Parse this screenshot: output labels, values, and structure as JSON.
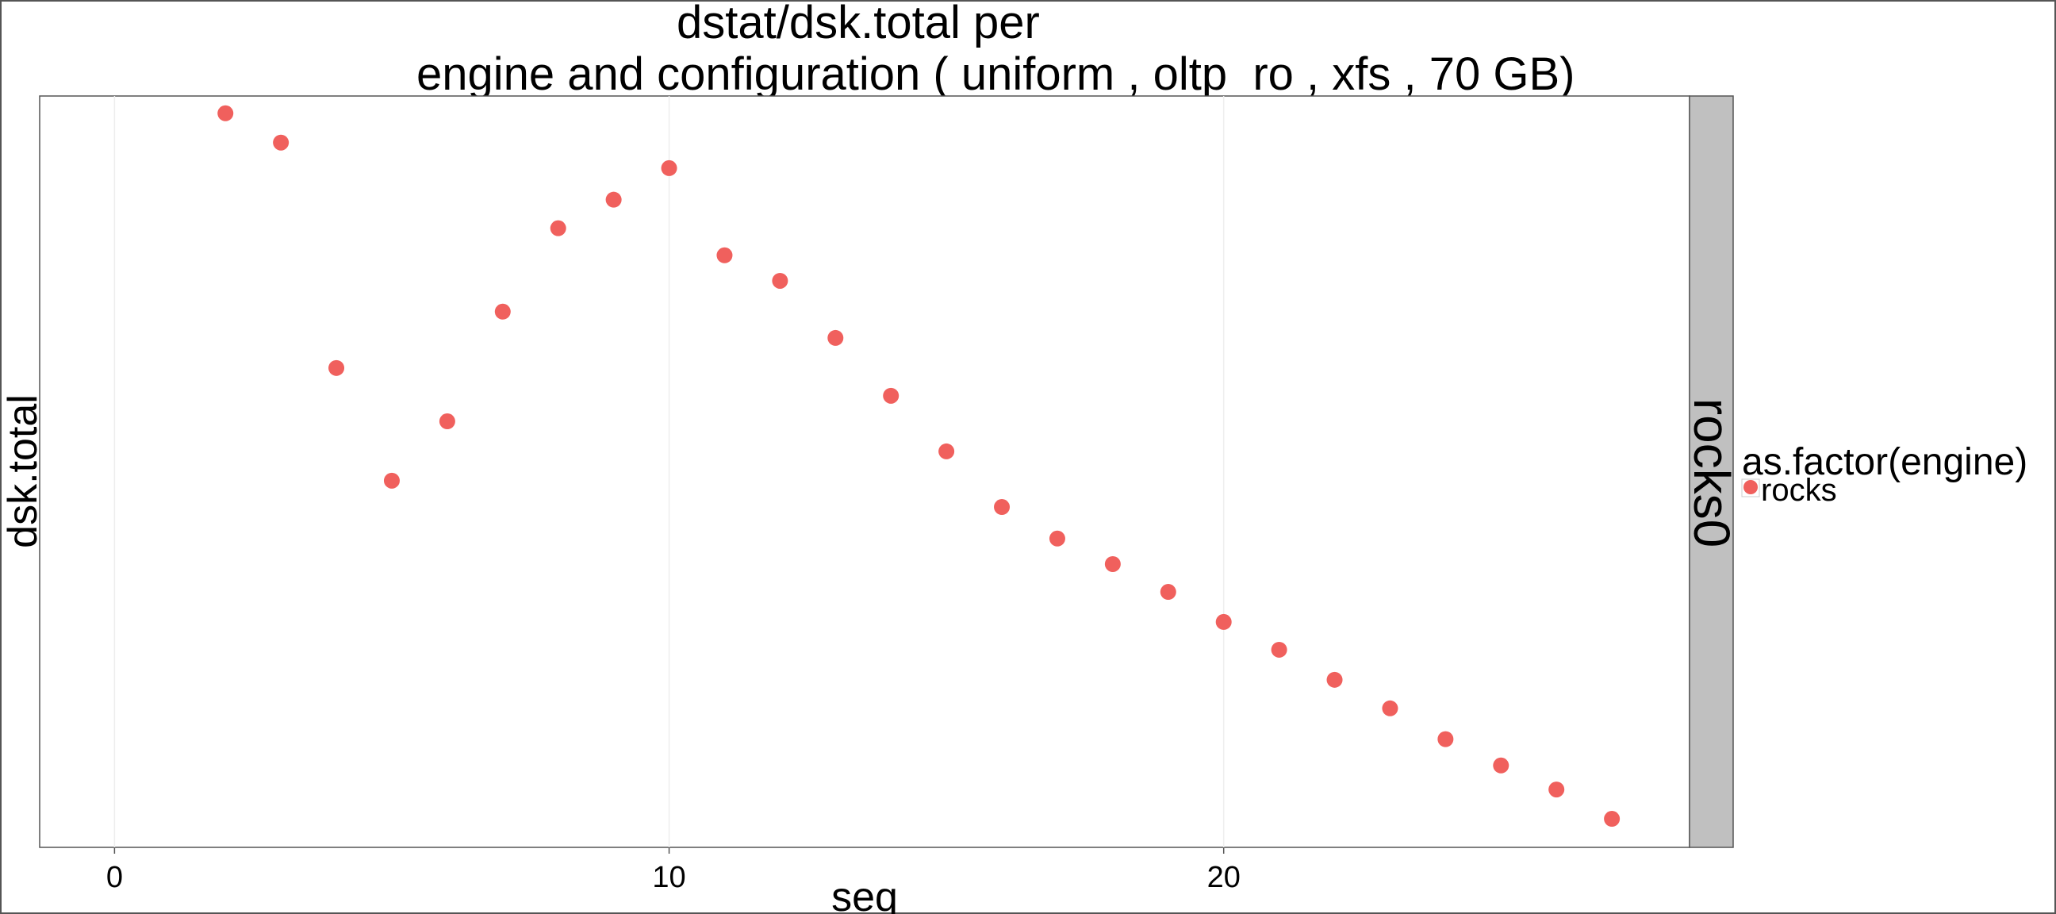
{
  "chart_data": {
    "type": "scatter",
    "title_line1": "dstat/dsk.total per",
    "title_line2": "engine and configuration ( uniform , oltp_ro , xfs ,  70 GB)",
    "xlabel": "seq",
    "ylabel": "dsk.total",
    "xlim": [
      -1.35,
      28.4
    ],
    "ylim": [
      0,
      100
    ],
    "x_ticks": [
      0,
      10,
      20
    ],
    "y_ticks": [],
    "grid": true,
    "facet_label": "rocks0",
    "legend": {
      "title": "as.factor(engine)",
      "placement": "right",
      "entries": [
        {
          "label": "rocks",
          "color": "#F0605D"
        }
      ]
    },
    "series": [
      {
        "name": "rocks",
        "color": "#F0605D",
        "x": [
          2,
          3,
          4,
          5,
          6,
          7,
          8,
          9,
          10,
          11,
          12,
          13,
          14,
          15,
          16,
          17,
          18,
          19,
          20,
          21,
          22,
          23,
          24,
          25,
          26,
          27
        ],
        "y": [
          97.7,
          93.8,
          63.8,
          48.8,
          56.7,
          71.3,
          82.4,
          86.2,
          90.4,
          78.8,
          75.4,
          67.8,
          60.1,
          52.7,
          45.3,
          41.1,
          37.7,
          34.0,
          30.0,
          26.3,
          22.3,
          18.5,
          14.4,
          10.9,
          7.7,
          3.8
        ]
      }
    ]
  }
}
